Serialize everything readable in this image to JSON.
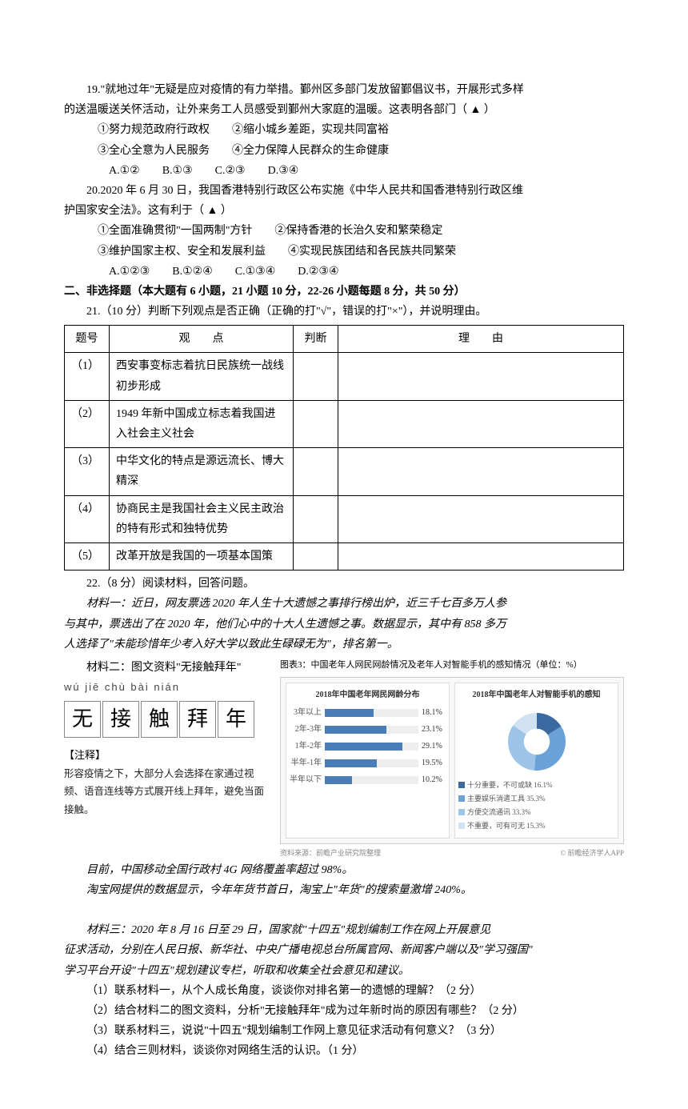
{
  "q19": {
    "stem_l1": "19.\"就地过年\"无疑是应对疫情的有力举措。鄞州区多部门发放留鄞倡议书，开展形式多样",
    "stem_l2": "的送温暖送关怀活动，让外来务工人员感受到鄞州大家庭的温暖。这表明各部门（  ▲  ）",
    "opt_row1": "①努力规范政府行政权　　②缩小城乡差距，实现共同富裕",
    "opt_row2": "③全心全意为人民服务　　④全力保障人民群众的生命健康",
    "choices": "A.①②　　B.①③　　C.②③　　D.③④"
  },
  "q20": {
    "stem_l1": "20.2020 年 6 月 30 日，我国香港特别行政区公布实施《中华人民共和国香港特别行政区维",
    "stem_l2": "护国家安全法》。这有利于（  ▲  ）",
    "opt_row1": "①全面准确贯彻\"一国两制\"方针　　②保持香港的长治久安和繁荣稳定",
    "opt_row2": "③维护国家主权、安全和发展利益　　④实现民族团结和各民族共同繁荣",
    "choices": "A.①②③　　B.①②④　　C.①③④　　D.②③④"
  },
  "section2_header": "二、非选择题（本大题有 6 小题，21 小题 10 分，22-26 小题每题 8 分，共 50 分）",
  "q21": {
    "stem": "21.（10 分）判断下列观点是否正确（正确的打\"√\"，错误的打\"×\"），并说明理由。",
    "headers": {
      "num": "题号",
      "view": "观　　点",
      "judge": "判断",
      "reason": "理　　由"
    },
    "rows": [
      {
        "num": "（1）",
        "view": "西安事变标志着抗日民族统一战线初步形成"
      },
      {
        "num": "（2）",
        "view": "1949 年新中国成立标志着我国进入社会主义社会"
      },
      {
        "num": "（3）",
        "view": "中华文化的特点是源远流长、博大精深"
      },
      {
        "num": "（4）",
        "view": "协商民主是我国社会主义民主政治的特有形式和独特优势"
      },
      {
        "num": "（5）",
        "view": "改革开放是我国的一项基本国策"
      }
    ]
  },
  "q22": {
    "stem": "22.（8 分）阅读材料，回答问题。",
    "m1_l1": "材料一：近日，网友票选 2020 年人生十大遗憾之事排行榜出炉，近三千七百多万人参",
    "m1_l2": "与其中，票选出了在 2020 年，他们心中的十大人生遗憾之事。数据显示，其中有 858 多万",
    "m1_l3": "人选择了\"未能珍惜年少考入好大学以致此生碌碌无为\"，排名第一。",
    "m2_title": "材料二：图文资料\"无接触拜年\"",
    "pinyin": "wú jiē chù bài nián",
    "chars": [
      "无",
      "接",
      "触",
      "拜",
      "年"
    ],
    "note_label": "【注释】",
    "note_text": "形容疫情之下，大部分人会选择在家通过视频、语音连线等方式展开线上拜年，避免当面接触。",
    "chart_title": "图表3：中国老年人网民网龄情况及老年人对智能手机的感知情况（单位：%）",
    "bar_panel_title": "2018年中国老年网民网龄分布",
    "pie_panel_title": "2018年中国老年人对智能手机的感知",
    "bars": [
      {
        "label": "3年以上",
        "value": 18.1
      },
      {
        "label": "2年-3年",
        "value": 23.1
      },
      {
        "label": "1年-2年",
        "value": 29.1
      },
      {
        "label": "半年-1年",
        "value": 19.5
      },
      {
        "label": "半年以下",
        "value": 10.2
      }
    ],
    "bar_max": 35,
    "bar_color": "#4a7db8",
    "pie_segments": [
      {
        "label": "十分重要，不可或缺",
        "value": 16.1,
        "color": "#3a6aa0"
      },
      {
        "label": "主要娱乐消遣工具",
        "value": 35.3,
        "color": "#6aa2d8"
      },
      {
        "label": "方便交流通讯",
        "value": 33.3,
        "color": "#9cc4e8"
      },
      {
        "label": "不重要，可有可无",
        "value": 15.3,
        "color": "#d0e2f2"
      }
    ],
    "source_left": "资料来源：前瞻产业研究院整理",
    "source_right": "© 前瞻经济学人APP",
    "m2_after1": "目前，中国移动全国行政村 4G 网络覆盖率超过 98%。",
    "m2_after2": "淘宝网提供的数据显示，今年年货节首日，淘宝上\"年货\"的搜索量激增 240%。",
    "m3_l1": "材料三：2020 年 8 月 16 日至 29 日，国家就\"十四五\"规划编制工作在网上开展意见",
    "m3_l2": "征求活动，分别在人民日报、新华社、中央广播电视总台所属官网、新闻客户端以及\"学习强国\"",
    "m3_l3": "学习平台开设\"十四五\"规划建议专栏，听取和收集全社会意见和建议。",
    "sub1": "（1）联系材料一，从个人成长角度，谈谈你对排名第一的遗憾的理解？（2 分）",
    "sub2": "（2）结合材料二的图文资料，分析\"无接触拜年\"成为过年新时尚的原因有哪些？（2 分）",
    "sub3": "（3）联系材料三，说说\"十四五\"规划编制工作网上意见征求活动有何意义？（3 分）",
    "sub4": "（4）结合三则材料，谈谈你对网络生活的认识。（1 分）"
  }
}
